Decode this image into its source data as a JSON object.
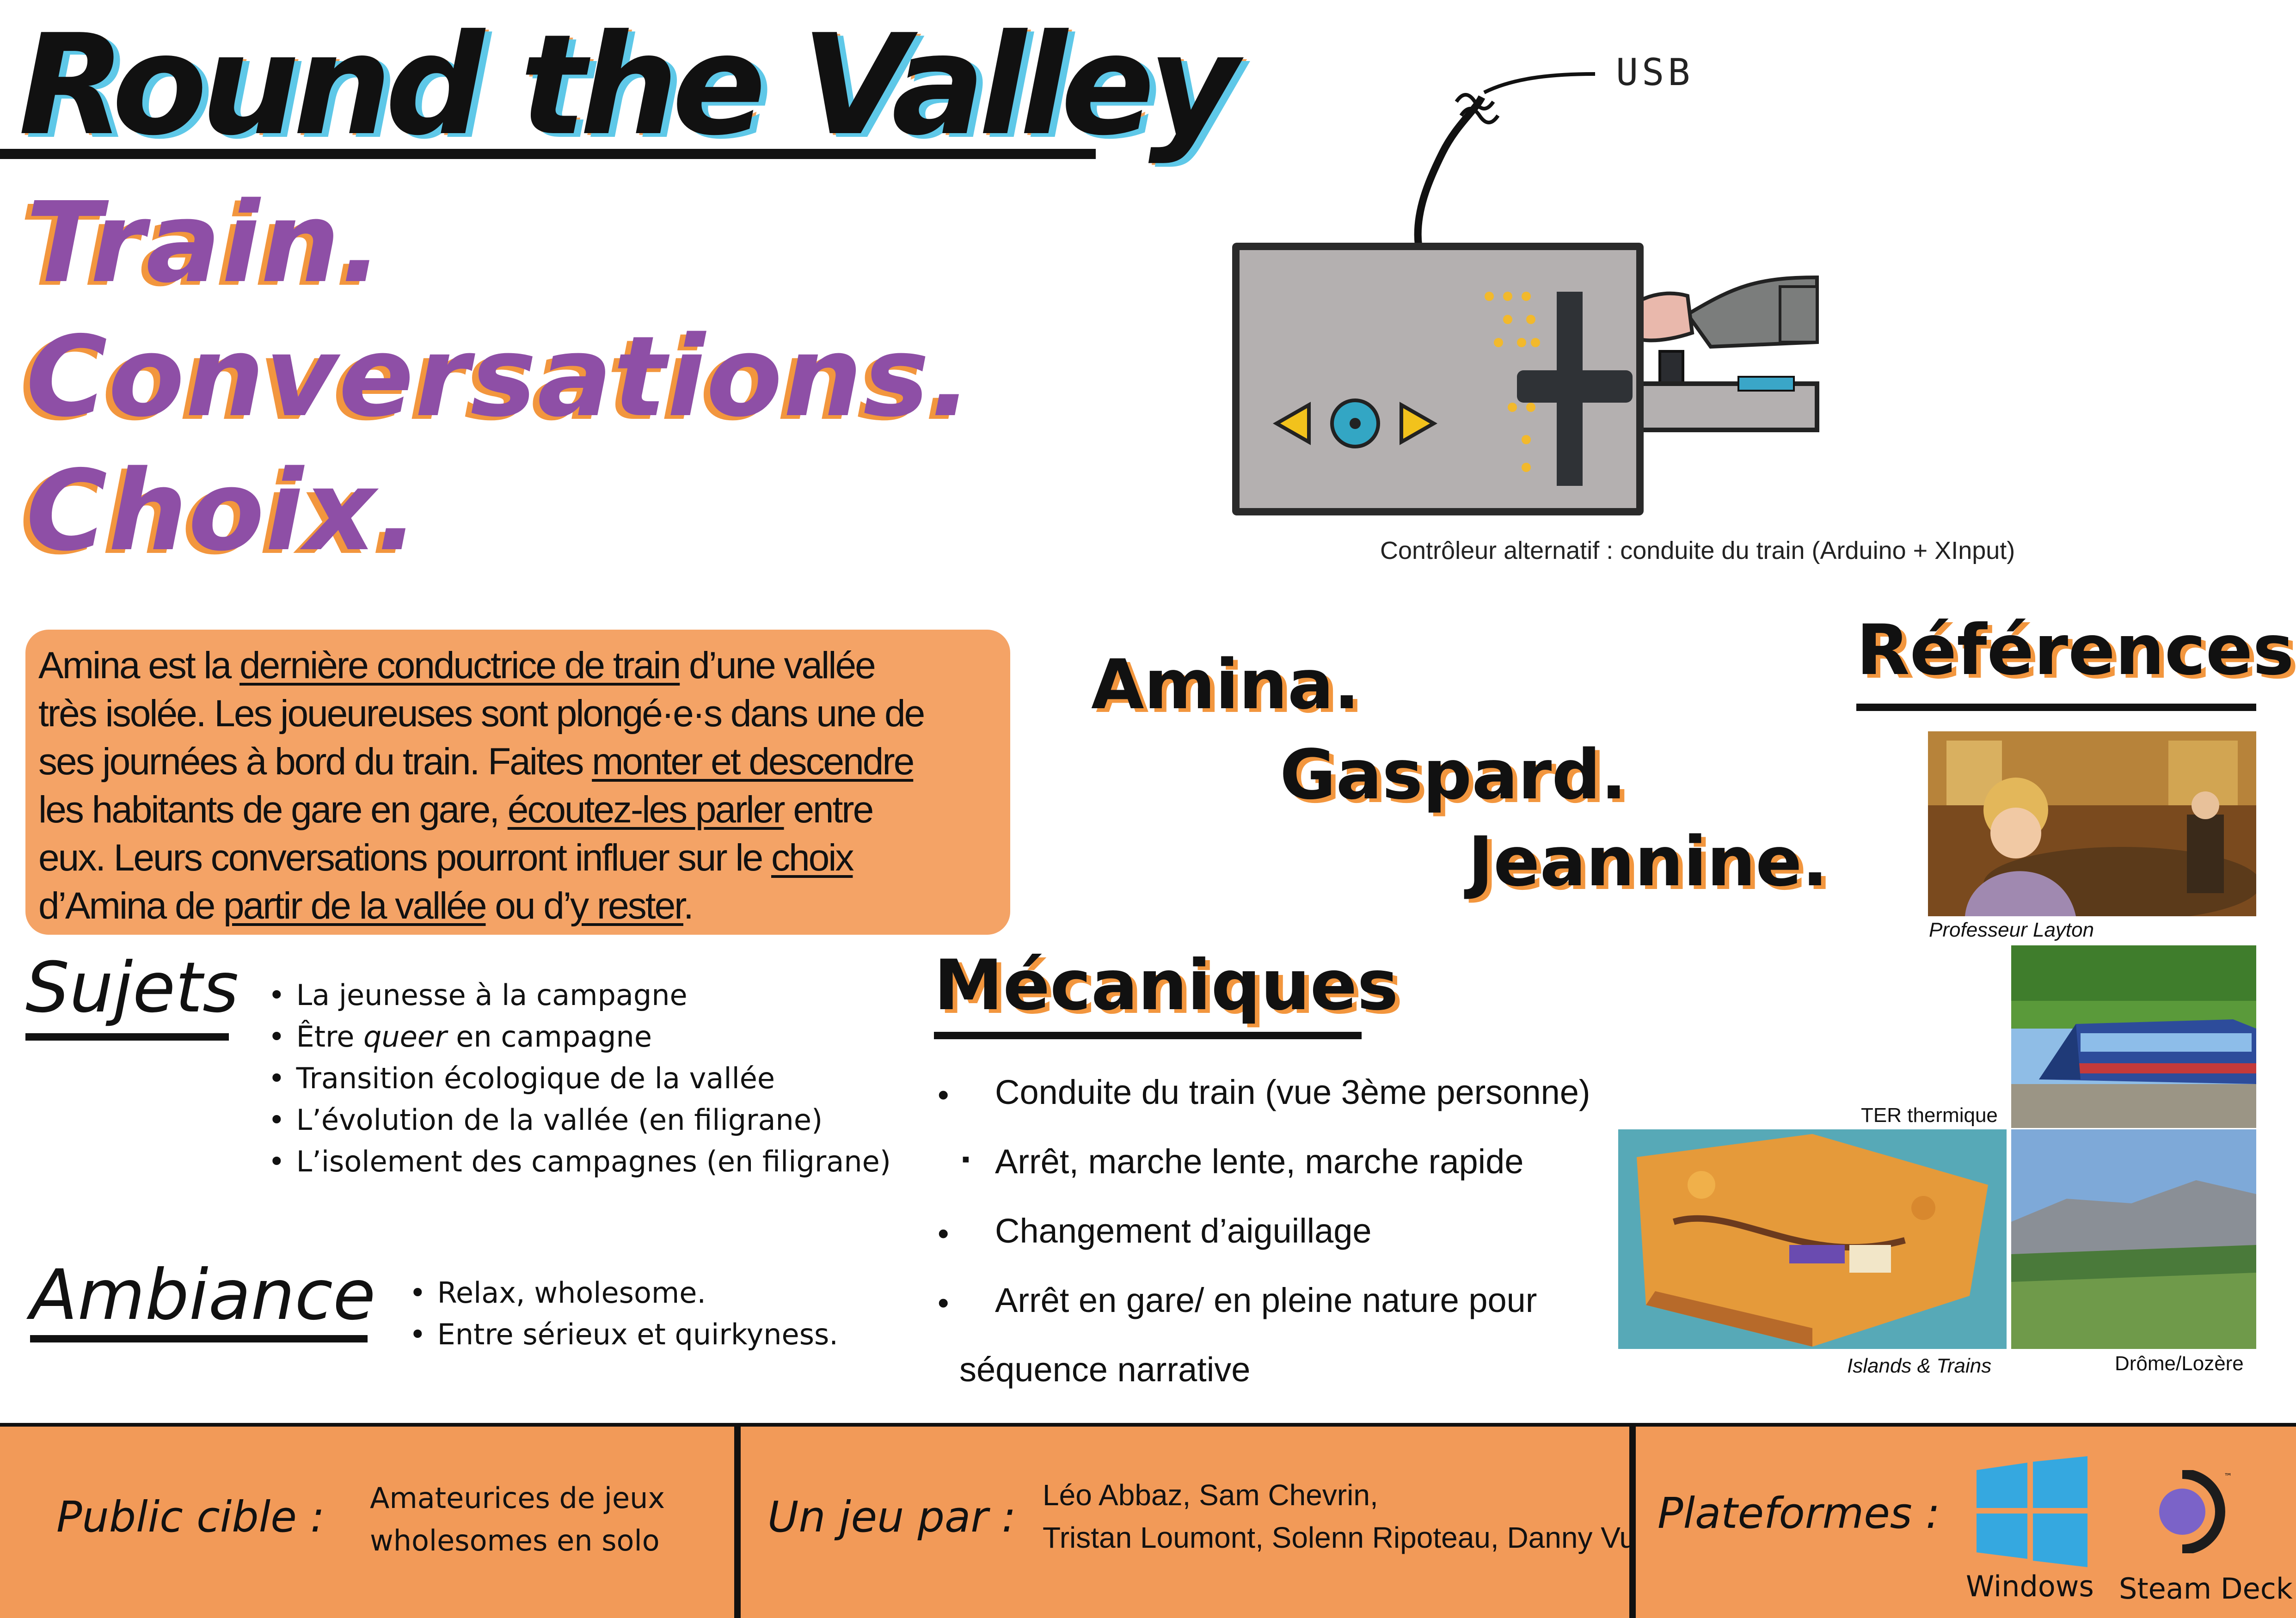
{
  "title": "Round the Valley",
  "tagline": [
    "Train.",
    "Conversations.",
    "Choix."
  ],
  "controller": {
    "usb_label": "USB",
    "caption": "Contrôleur alternatif : conduite du train (Arduino + XInput)"
  },
  "pitch": {
    "l1a": "Amina est la ",
    "l1u": "dernière conductrice de train",
    "l1b": " d’une vallée",
    "l2": "très isolée. Les joueureuses sont plongé·e·s dans une de",
    "l3a": "ses journées à bord du train. Faites ",
    "l3u": "monter et descendre",
    "l4a": "les habitants de gare en gare, ",
    "l4u": "écoutez-les parler",
    "l4b": " entre",
    "l5a": "eux. Leurs conversations pourront influer sur le ",
    "l5u": "choix",
    "l6a": "d’Amina de ",
    "l6u": "partir de la vallée",
    "l6b": " ou d’",
    "l6u2": "y rester",
    "l6c": "."
  },
  "characters": [
    "Amina.",
    "Gaspard.",
    "Jeannine."
  ],
  "sujets": {
    "heading": "Sujets",
    "items": [
      "La jeunesse à la campagne",
      "Être ",
      "queer",
      " en campagne",
      "Transition écologique de la vallée",
      "L’évolution de la vallée (en filigrane)",
      "L’isolement des campagnes (en filigrane)"
    ]
  },
  "ambiance": {
    "heading": "Ambiance",
    "items": [
      "Relax, wholesome.",
      "Entre sérieux et quirkyness."
    ]
  },
  "mecaniques": {
    "heading": "Mécaniques",
    "items": [
      "Conduite du train (vue 3ème personne)",
      "Arrêt, marche lente, marche rapide",
      "Changement d’aiguillage",
      "Arrêt en gare/ en pleine nature pour",
      "séquence narrative"
    ]
  },
  "references": {
    "heading": "Références",
    "captions": [
      "Professeur Layton",
      "TER thermique",
      "Islands & Trains",
      "Drôme/Lozère"
    ]
  },
  "footer": {
    "public_label": "Public cible :",
    "public_value": [
      "Amateurices de jeux",
      "wholesomes en solo"
    ],
    "par_label": "Un jeu par :",
    "par_value": [
      "Léo Abbaz, Sam Chevrin,",
      "Tristan Loumont, Solenn Ripoteau, Danny Vu"
    ],
    "plat_label": "Plateformes :",
    "platforms": [
      "Windows",
      "Steam Deck"
    ]
  },
  "icons": [
    "usb-cable-icon",
    "windows-logo-icon",
    "steam-deck-logo-icon"
  ],
  "colors": {
    "purple": "#8e4fa6",
    "orange": "#f2963e",
    "cyan": "#5ec8e8",
    "pitch_bg": "#f4a366",
    "footer_bg": "#f29a58"
  }
}
